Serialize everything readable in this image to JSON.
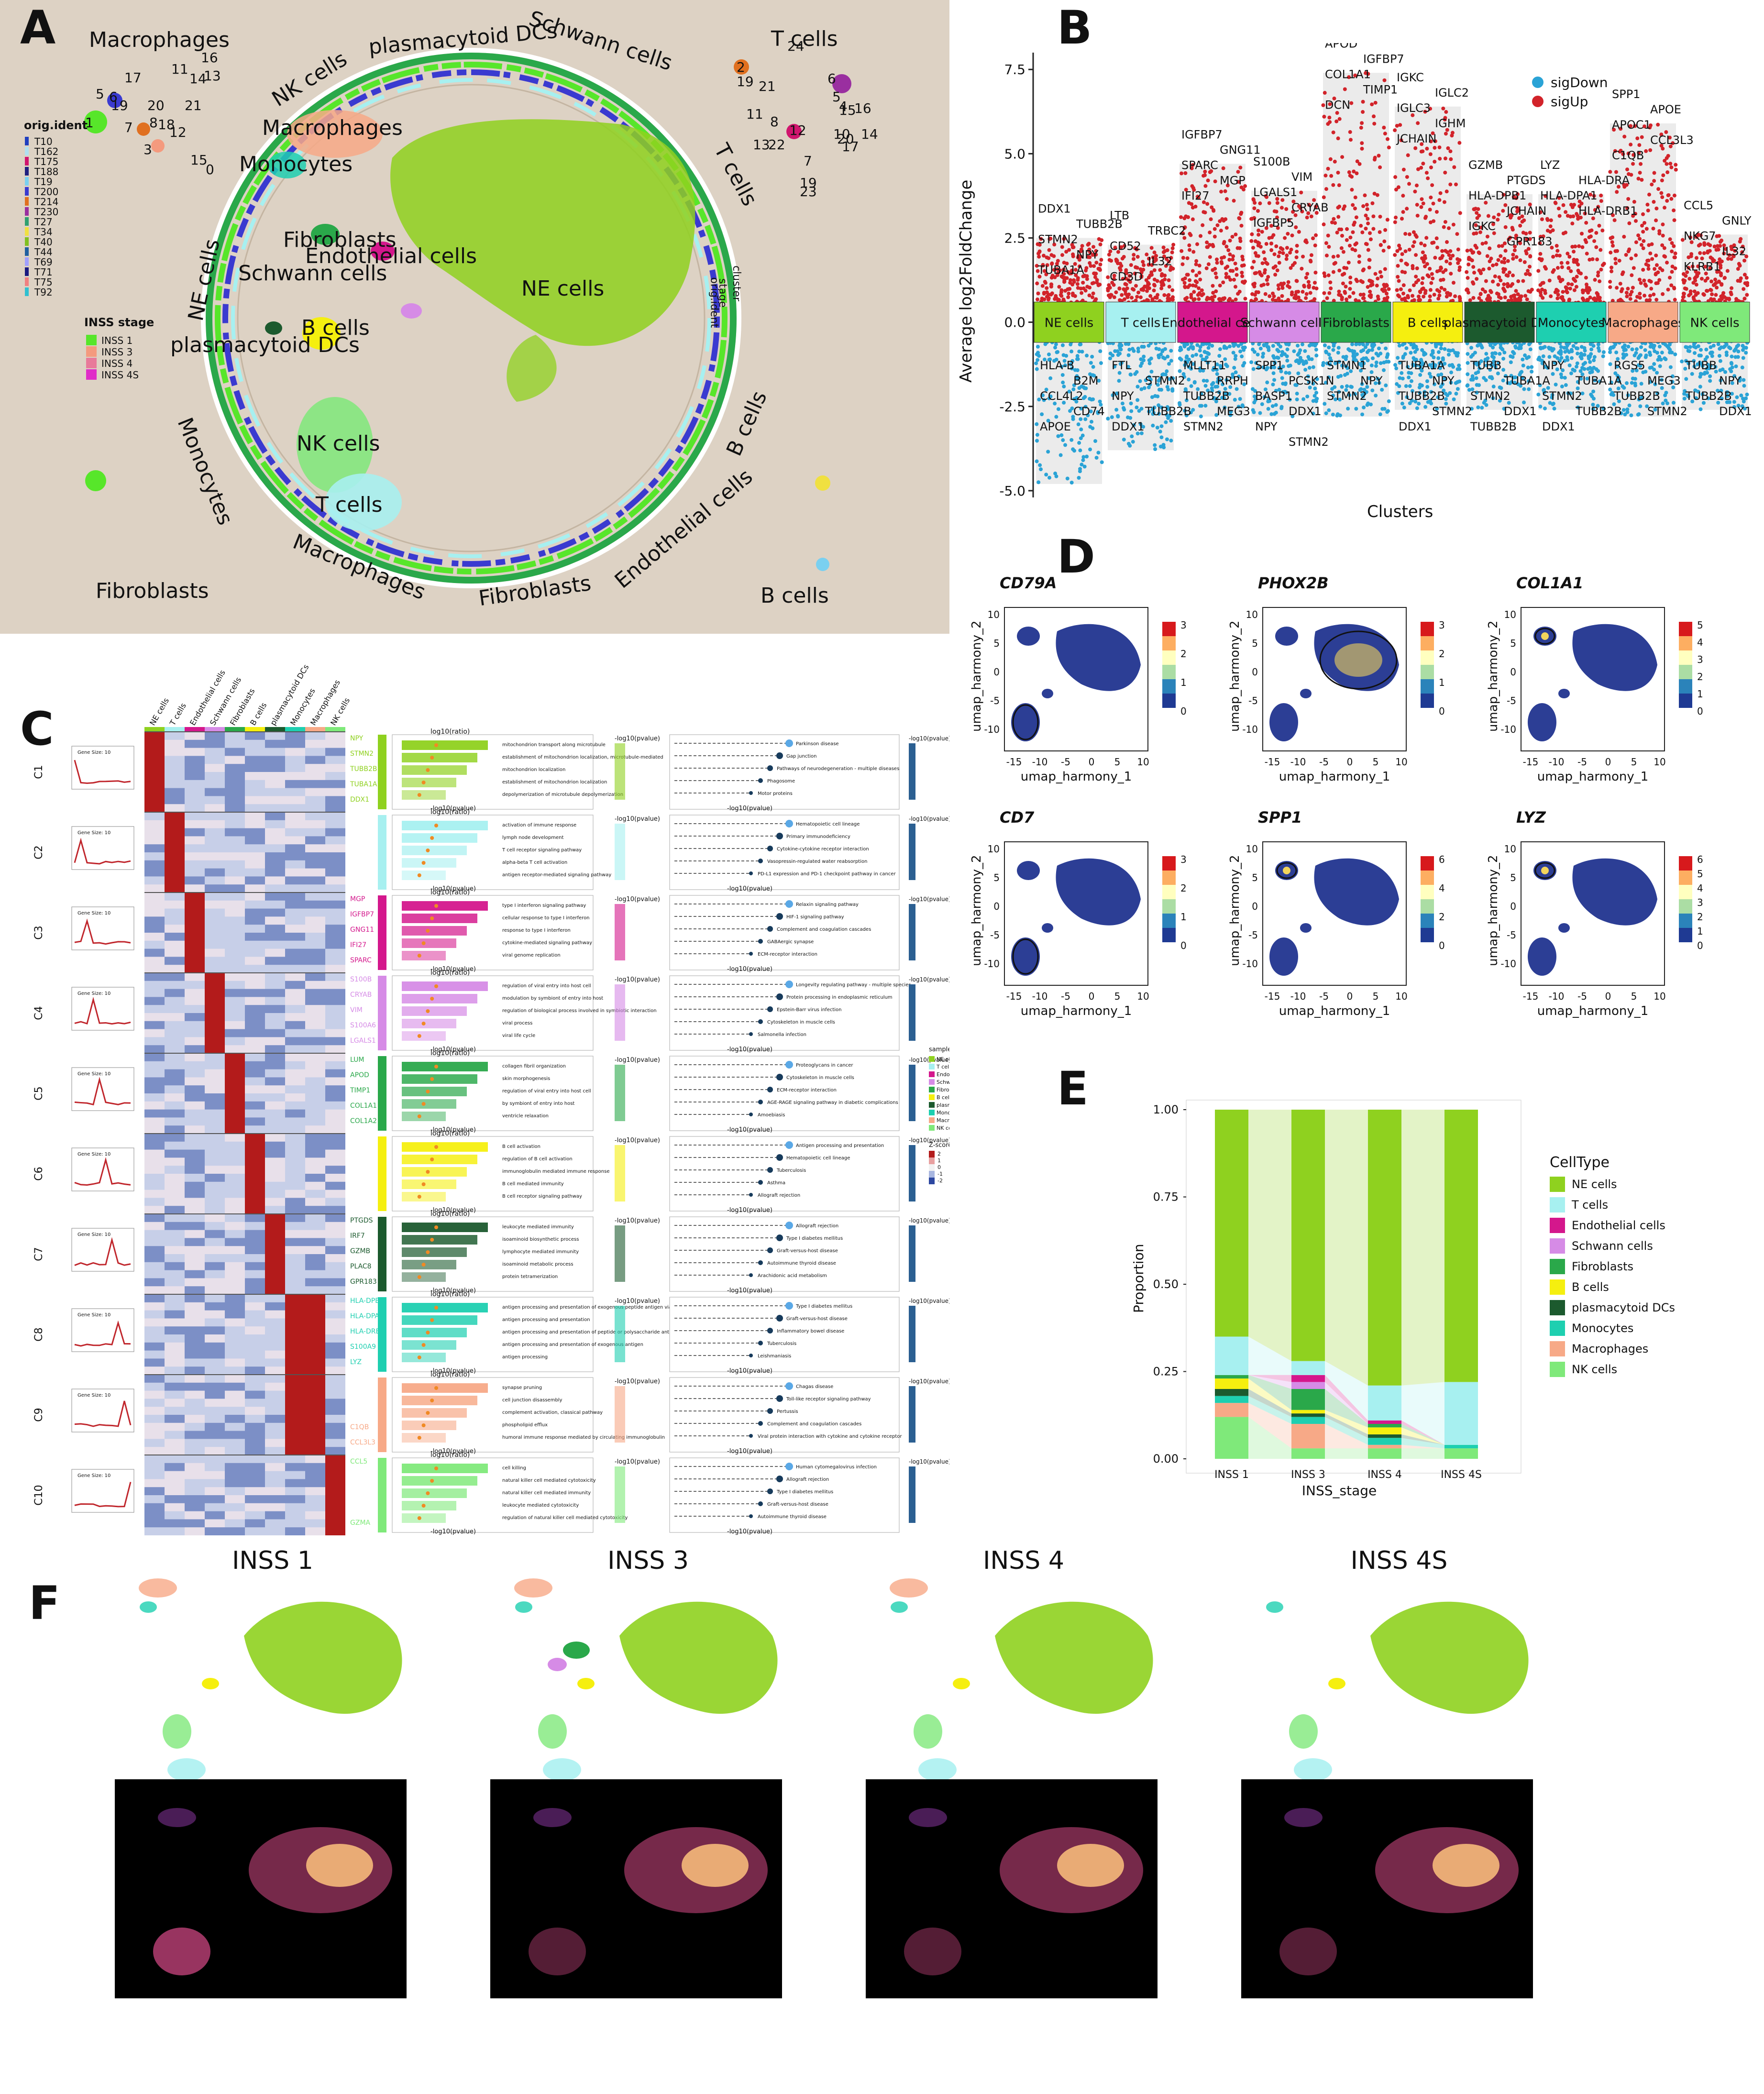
{
  "panels": {
    "A": "A",
    "B": "B",
    "C": "C",
    "D": "D",
    "E": "E",
    "F": "F"
  },
  "colors": {
    "ne": "#8fd11f",
    "tcells": "#a7f0f0",
    "endo": "#d4178c",
    "schwann": "#d68be6",
    "fibro": "#2aa84a",
    "bcells": "#f5ef0f",
    "pdc": "#1c5a2e",
    "mono": "#1ecfb0",
    "macro": "#f7a987",
    "nk": "#7fe97a",
    "sigdown": "#2aa3d6",
    "sigup": "#d2232a"
  },
  "panelA": {
    "cell_labels": [
      "Macrophages",
      "T cells",
      "plasmacytoid DCs",
      "Schwann cells",
      "NK cells",
      "Macrophages",
      "Monocytes",
      "T cells",
      "NE cells",
      "Fibroblasts",
      "Endothelial cells",
      "Schwann cells",
      "NE cells",
      "B cells",
      "plasmacytoid DCs",
      "NK cells",
      "T cells",
      "Monocytes",
      "Macrophages",
      "Fibroblasts",
      "Endothelial cells",
      "B cells",
      "Fibroblasts",
      "B cells"
    ],
    "legend_title_1": "orig.ident",
    "orig_ident": [
      "T10",
      "T162",
      "T175",
      "T188",
      "T19",
      "T200",
      "T214",
      "T230",
      "T27",
      "T34",
      "T40",
      "T44",
      "T69",
      "T71",
      "T75",
      "T92"
    ],
    "orig_colors": [
      "#1f3fbf",
      "#b0e0f0",
      "#d0156e",
      "#202080",
      "#7ad0f0",
      "#3a3ad0",
      "#e07020",
      "#9a2fa0",
      "#2fa070",
      "#f0e040",
      "#80c020",
      "#2060a0",
      "#a0a0ff",
      "#1a1a80",
      "#f08080",
      "#30c0d0"
    ],
    "legend_title_2": "INSS stage",
    "inss_stage": [
      "INSS 1",
      "INSS 3",
      "INSS 4",
      "INSS 4S"
    ],
    "inss_colors": [
      "#57e62a",
      "#f49a7e",
      "#e87a9a",
      "#e02cc8"
    ],
    "ring_labels": [
      "cluster",
      "stage",
      "orig.ident"
    ],
    "numbers_tl": [
      "16",
      "17",
      "11",
      "14",
      "13",
      "5",
      "6",
      "19",
      "20",
      "15",
      "7",
      "1",
      "8",
      "18",
      "3",
      "21",
      "12",
      "0",
      "15"
    ],
    "numbers_tr": [
      "24",
      "2",
      "19",
      "21",
      "6",
      "5",
      "4",
      "16",
      "15",
      "11",
      "8",
      "12",
      "13",
      "22",
      "10",
      "7",
      "20",
      "14",
      "17",
      "19",
      "23"
    ]
  },
  "panelB": {
    "ylabel": "Average log2FoldChange",
    "xlabel": "Clusters",
    "yticks": [
      "7.5",
      "5.0",
      "2.5",
      "0.0",
      "-2.5",
      "-5.0"
    ],
    "legend": [
      "sigDown",
      "sigUp"
    ],
    "clusters": [
      "NE cells",
      "T cells",
      "Endothelial cells",
      "Schwann cells",
      "Fibroblasts",
      "B cells",
      "plasmacytoid DCs",
      "Monocytes",
      "Macrophages",
      "NK cells"
    ],
    "up_genes": [
      [
        "DDX1",
        "TUBB2B",
        "STMN2",
        "NPY",
        "TUBA1A"
      ],
      [
        "LTB",
        "TRBC2",
        "CD52",
        "IL32",
        "CD3D"
      ],
      [
        "IGFBP7",
        "GNG11",
        "SPARC",
        "MGP",
        "IFI27"
      ],
      [
        "S100B",
        "VIM",
        "LGALS1",
        "CRYAB",
        "IGFBP5"
      ],
      [
        "APOD",
        "IGFBP7",
        "COL1A1",
        "TIMP1",
        "DCN"
      ],
      [
        "IGKC",
        "IGLC2",
        "IGLC3",
        "IGHM",
        "JCHAIN"
      ],
      [
        "GZMB",
        "PTGDS",
        "HLA-DPB1",
        "JCHAIN",
        "IGKC",
        "GPR183"
      ],
      [
        "LYZ",
        "HLA-DRA",
        "HLA-DPA1",
        "HLA-DRB1"
      ],
      [
        "SPP1",
        "APOE",
        "APOC1",
        "CCL3L3",
        "C1QB"
      ],
      [
        "CCL5",
        "GNLY",
        "NKG7",
        "IL32",
        "KLRB1"
      ]
    ],
    "down_genes": [
      [
        "HLA-B",
        "B2M",
        "CCL4L2",
        "CD74",
        "APOE"
      ],
      [
        "FTL",
        "STMN2",
        "NPY",
        "TUBB2B",
        "DDX1"
      ],
      [
        "MLLT11",
        "RRPH",
        "TUBB2B",
        "MEG3",
        "STMN2"
      ],
      [
        "SPP1",
        "PCSK1N",
        "BASP1",
        "DDX1",
        "NPY",
        "STMN2"
      ],
      [
        "STMN1",
        "NPY",
        "STMN2"
      ],
      [
        "TUBA1A",
        "NPY",
        "TUBB2B",
        "STMN2",
        "DDX1"
      ],
      [
        "TUBB",
        "TUBA1A",
        "STMN2",
        "DDX1",
        "TUBB2B"
      ],
      [
        "NPY",
        "TUBA1A",
        "STMN2",
        "TUBB2B",
        "DDX1"
      ],
      [
        "RGS5",
        "MEG3",
        "TUBB2B",
        "STMN2"
      ],
      [
        "TUBB",
        "NPY",
        "TUBB2B",
        "DDX1"
      ]
    ]
  },
  "panelC": {
    "column_labels": [
      "NE cells",
      "T cells",
      "Endothelial cells",
      "Schwann cells",
      "Fibroblasts",
      "B cells",
      "plasmacytoid DCs",
      "Monocytes",
      "Macrophages",
      "NK cells"
    ],
    "clusters": [
      "C1",
      "C2",
      "C3",
      "C4",
      "C5",
      "C6",
      "C7",
      "C8",
      "C9",
      "C10"
    ],
    "gene_size": "Gene Size: 10",
    "genes": [
      [
        "NPY",
        "STMN2",
        "TUBB2B",
        "TUBA1A",
        "DDX1"
      ],
      [
        "",
        "",
        "",
        "",
        ""
      ],
      [
        "MGP",
        "IGFBP7",
        "GNG11",
        "IFI27",
        "SPARC"
      ],
      [
        "S100B",
        "CRYAB",
        "VIM",
        "S100A6",
        "LGALS1"
      ],
      [
        "LUM",
        "APOD",
        "TIMP1",
        "COL1A1",
        "COL1A2"
      ],
      [
        "",
        "",
        "",
        "",
        ""
      ],
      [
        "PTGDS",
        "IRF7",
        "GZMB",
        "PLAC8",
        "GPR183"
      ],
      [
        "HLA-DPB1",
        "HLA-DPA1",
        "HLA-DRB1",
        "S100A9",
        "LYZ"
      ],
      [
        "",
        "",
        "",
        "C1QB",
        "CCL3L3"
      ],
      [
        "CCL5",
        "",
        "",
        "",
        "GZMA"
      ]
    ],
    "bar_axis": "log10(ratio)",
    "bar_xaxis": "-log10(pvalue)",
    "dot_axis": "-log10(pvalue)",
    "bar_terms": [
      [
        "mitochondrion transport along microtubule",
        "establishment of mitochondrion localization, microtubule-mediated",
        "mitochondrion localization",
        "establishment of mitochondrion localization",
        "depolymerization of microtubule depolymerization"
      ],
      [
        "activation of immune response",
        "lymph node development",
        "T cell receptor signaling pathway",
        "alpha-beta T cell activation",
        "antigen receptor-mediated signaling pathway"
      ],
      [
        "type I interferon signaling pathway",
        "cellular response to type I interferon",
        "response to type I interferon",
        "cytokine-mediated signaling pathway",
        "viral genome replication"
      ],
      [
        "regulation of viral entry into host cell",
        "modulation by symbiont of entry into host",
        "regulation of biological process involved in symbiotic interaction",
        "viral process",
        "viral life cycle"
      ],
      [
        "collagen fibril organization",
        "skin morphogenesis",
        "regulation of viral entry into host cell",
        "by symbiont of entry into host",
        "ventricle relaxation"
      ],
      [
        "B cell activation",
        "regulation of B cell activation",
        "immunoglobulin mediated immune response",
        "B cell mediated immunity",
        "B cell receptor signaling pathway"
      ],
      [
        "leukocyte mediated immunity",
        "isoaminoid biosynthetic process",
        "lymphocyte mediated immunity",
        "isoaminoid metabolic process",
        "protein tetramerization"
      ],
      [
        "antigen processing and presentation of exogenous peptide antigen via MHC class",
        "antigen processing and presentation",
        "antigen processing and presentation of peptide or polysaccharide antigen via MHC",
        "antigen processing and presentation of exogenous antigen",
        "antigen processing"
      ],
      [
        "synapse pruning",
        "cell junction disassembly",
        "complement activation, classical pathway",
        "phospholipid efflux",
        "humoral immune response mediated by circulating immunoglobulin"
      ],
      [
        "cell killing",
        "natural killer cell mediated cytotoxicity",
        "natural killer cell mediated immunity",
        "leukocyte mediated cytotoxicity",
        "regulation of natural killer cell mediated cytotoxicity"
      ]
    ],
    "dot_terms": [
      [
        "Parkinson disease",
        "Gap junction",
        "Pathways of neurodegeneration - multiple diseases",
        "Phagosome",
        "Motor proteins"
      ],
      [
        "Hematopoietic cell lineage",
        "Primary immunodeficiency",
        "Cytokine-cytokine receptor interaction",
        "Vasopressin-regulated water reabsorption",
        "PD-L1 expression and PD-1 checkpoint pathway in cancer"
      ],
      [
        "Relaxin signaling pathway",
        "HIF-1 signaling pathway",
        "Complement and coagulation cascades",
        "GABAergic synapse",
        "ECM-receptor interaction"
      ],
      [
        "Longevity regulating pathway - multiple species",
        "Protein processing in endoplasmic reticulum",
        "Epstein-Barr virus infection",
        "Cytoskeleton in muscle cells",
        "Salmonella infection"
      ],
      [
        "Proteoglycans in cancer",
        "Cytoskeleton in muscle cells",
        "ECM-receptor interaction",
        "AGE-RAGE signaling pathway in diabetic complications",
        "Amoebiasis"
      ],
      [
        "Antigen processing and presentation",
        "Hematopoietic cell lineage",
        "Tuberculosis",
        "Asthma",
        "Allograft rejection"
      ],
      [
        "Allograft rejection",
        "Type I diabetes mellitus",
        "Graft-versus-host disease",
        "Autoimmune thyroid disease",
        "Arachidonic acid metabolism"
      ],
      [
        "Type I diabetes mellitus",
        "Graft-versus-host disease",
        "Inflammatory bowel disease",
        "Tuberculosis",
        "Leishmaniasis"
      ],
      [
        "Chagas disease",
        "Toll-like receptor signaling pathway",
        "Pertussis",
        "Complement and coagulation cascades",
        "Viral protein interaction with cytokine and cytokine receptor"
      ],
      [
        "Human cytomegalovirus infection",
        "Allograft rejection",
        "Type I diabetes mellitus",
        "Graft-versus-host disease",
        "Autoimmune thyroid disease"
      ]
    ],
    "side_legend_title": "sample",
    "zscore_title": "Z-score",
    "zscore_ticks": [
      "2",
      "1",
      "0",
      "-1",
      "-2"
    ]
  },
  "panelD": {
    "genes": [
      "CD79A",
      "PHOX2B",
      "COL1A1",
      "CD7",
      "SPP1",
      "LYZ"
    ],
    "xlabel": "umap_harmony_1",
    "ylabel": "umap_harmony_2",
    "xticks": [
      "-15",
      "-10",
      "-5",
      "0",
      "5",
      "10"
    ],
    "yticks": [
      "10",
      "5",
      "0",
      "-5",
      "-10"
    ],
    "scales": [
      [
        "3",
        "2",
        "1",
        "0"
      ],
      [
        "3",
        "2",
        "1",
        "0"
      ],
      [
        "5",
        "4",
        "3",
        "2",
        "1",
        "0"
      ],
      [
        "3",
        "2",
        "1",
        "0"
      ],
      [
        "6",
        "4",
        "2",
        "0"
      ],
      [
        "6",
        "5",
        "4",
        "3",
        "2",
        "1",
        "0"
      ]
    ]
  },
  "panelE": {
    "chart_data": {
      "type": "bar",
      "stacked": true,
      "categories": [
        "INSS 1",
        "INSS 3",
        "INSS 4",
        "INSS 4S"
      ],
      "xlabel": "INSS_stage",
      "ylabel": "Proportion",
      "ylim": [
        0,
        1
      ],
      "yticks": [
        "0.00",
        "0.25",
        "0.50",
        "0.75",
        "1.00"
      ],
      "legend_title": "CellType",
      "series": [
        {
          "name": "NK cells",
          "values": [
            0.12,
            0.03,
            0.03,
            0.03
          ]
        },
        {
          "name": "Macrophages",
          "values": [
            0.04,
            0.07,
            0.01,
            0.0
          ]
        },
        {
          "name": "Monocytes",
          "values": [
            0.02,
            0.02,
            0.02,
            0.01
          ]
        },
        {
          "name": "plasmacytoid DCs",
          "values": [
            0.02,
            0.01,
            0.01,
            0.0
          ]
        },
        {
          "name": "B cells",
          "values": [
            0.03,
            0.01,
            0.02,
            0.0
          ]
        },
        {
          "name": "Fibroblasts",
          "values": [
            0.01,
            0.06,
            0.01,
            0.0
          ]
        },
        {
          "name": "Schwann cells",
          "values": [
            0.0,
            0.02,
            0.0,
            0.0
          ]
        },
        {
          "name": "Endothelial cells",
          "values": [
            0.0,
            0.02,
            0.01,
            0.0
          ]
        },
        {
          "name": "T cells",
          "values": [
            0.11,
            0.04,
            0.1,
            0.18
          ]
        },
        {
          "name": "NE cells",
          "values": [
            0.65,
            0.72,
            0.79,
            0.78
          ]
        }
      ]
    }
  },
  "panelF": {
    "titles": [
      "INSS 1",
      "INSS 3",
      "INSS 4",
      "INSS 4S"
    ]
  }
}
